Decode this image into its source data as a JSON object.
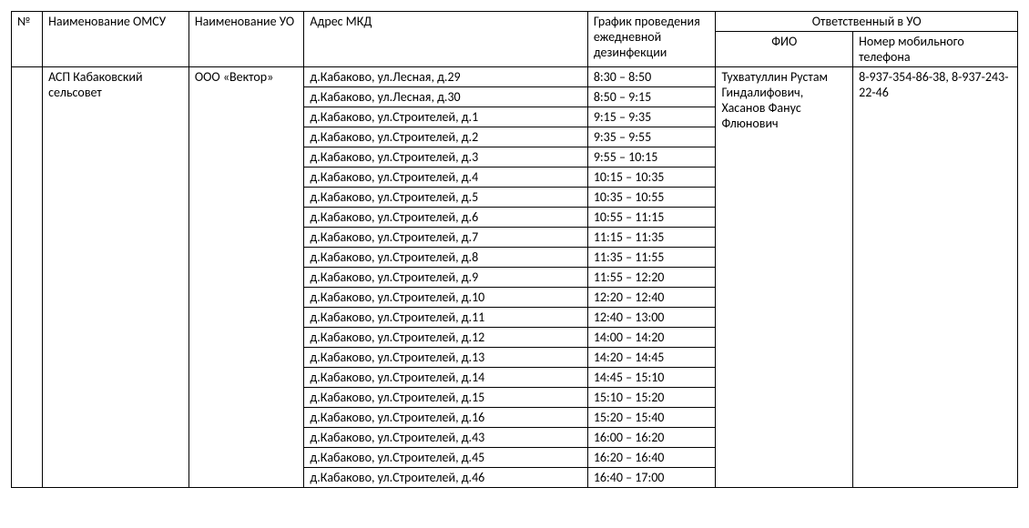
{
  "headers": {
    "num": "№",
    "omsu": "Наименование ОМСУ",
    "uo": "Наименование УО",
    "addr": "Адрес МКД",
    "schedule": "График проведения ежедневной дезинфекции",
    "responsible": "Ответственный в УО",
    "fio": "ФИО",
    "phone": "Номер мобильного телефона"
  },
  "row_main": {
    "num": "",
    "omsu": "АСП Кабаковский сельсовет",
    "uo": "ООО «Вектор»",
    "fio": "Тухватуллин Рустам Гиндалифович, Хасанов Фанус Флюнович",
    "phone": "8-937-354-86-38, 8-937-243-22-46"
  },
  "entries": [
    {
      "addr": "д.Кабаково, ул.Лесная, д.29",
      "sched": "8:30 – 8:50"
    },
    {
      "addr": "д.Кабаково, ул.Лесная, д.30",
      "sched": "8:50 – 9:15"
    },
    {
      "addr": "д.Кабаково, ул.Строителей, д.1",
      "sched": "9:15 – 9:35"
    },
    {
      "addr": "д.Кабаково, ул.Строителей, д.2",
      "sched": "9:35 – 9:55"
    },
    {
      "addr": "д.Кабаково, ул.Строителей, д.3",
      "sched": "9:55 – 10:15"
    },
    {
      "addr": "д.Кабаково, ул.Строителей, д.4",
      "sched": "10:15 – 10:35"
    },
    {
      "addr": "д.Кабаково, ул.Строителей, д.5",
      "sched": "10:35 – 10:55"
    },
    {
      "addr": "д.Кабаково, ул.Строителей, д.6",
      "sched": "10:55 – 11:15"
    },
    {
      "addr": "д.Кабаково, ул.Строителей, д.7",
      "sched": "11:15 – 11:35"
    },
    {
      "addr": "д.Кабаково, ул.Строителей, д.8",
      "sched": "11:35 – 11:55"
    },
    {
      "addr": "д.Кабаково, ул.Строителей, д.9",
      "sched": "11:55 – 12:20"
    },
    {
      "addr": "д.Кабаково, ул.Строителей, д.10",
      "sched": "12:20 – 12:40"
    },
    {
      "addr": "д.Кабаково, ул.Строителей, д.11",
      "sched": "12:40 – 13:00"
    },
    {
      "addr": "д.Кабаково, ул.Строителей, д.12",
      "sched": "14:00 – 14:20"
    },
    {
      "addr": "д.Кабаково, ул.Строителей, д.13",
      "sched": "14:20 – 14:45"
    },
    {
      "addr": "д.Кабаково, ул.Строителей, д.14",
      "sched": "14:45 – 15:10"
    },
    {
      "addr": "д.Кабаково, ул.Строителей, д.15",
      "sched": "15:10 – 15:20"
    },
    {
      "addr": "д.Кабаково, ул.Строителей, д.16",
      "sched": "15:20 – 15:40"
    },
    {
      "addr": "д.Кабаково, ул.Строителей, д.43",
      "sched": "16:00 – 16:20"
    },
    {
      "addr": "д.Кабаково, ул.Строителей, д.45",
      "sched": "16:20 – 16:40"
    },
    {
      "addr": "д.Кабаково, ул.Строителей, д.46",
      "sched": "16:40 – 17:00"
    }
  ],
  "style": {
    "border_color": "#000000",
    "text_color": "#000000",
    "background_color": "#ffffff",
    "font_family": "Calibri, Arial, sans-serif",
    "font_size_pt": 11
  }
}
